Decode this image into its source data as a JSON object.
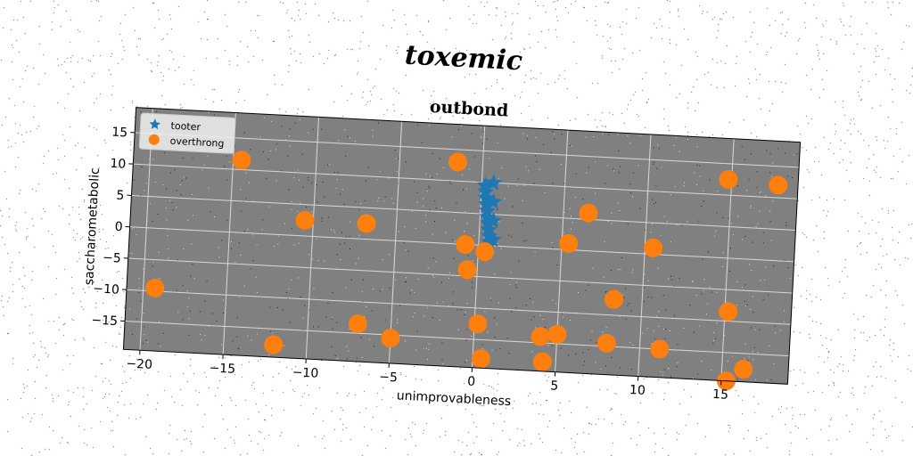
{
  "suptitle": "toxemic",
  "chart_data": {
    "type": "scatter",
    "title": "outbond",
    "xlabel": "unimprovableness",
    "ylabel": "saccharometabolic",
    "xlim": [
      -21,
      19
    ],
    "ylim": [
      -19.5,
      19
    ],
    "xticks": [
      -20,
      -15,
      -10,
      -5,
      0,
      5,
      10,
      15
    ],
    "yticks": [
      -15,
      -10,
      -5,
      0,
      5,
      10,
      15
    ],
    "grid": true,
    "legend_position": "top-left",
    "background": "#808080",
    "series": [
      {
        "name": "tooter",
        "marker": "star",
        "color": "#1f77b4",
        "x": [
          0.2,
          0.25,
          0.3,
          0.35,
          0.4,
          0.45,
          0.5,
          0.55,
          0.6,
          0.65,
          0.7,
          0.75,
          0.8,
          0.85
        ],
        "y": [
          9.5,
          8.5,
          7.5,
          6.5,
          5.5,
          4.5,
          3.5,
          2.5,
          1.5,
          0.5,
          10.0,
          7.0,
          4.0,
          1.0
        ]
      },
      {
        "name": "overthrong",
        "marker": "circle",
        "color": "#ff7f0e",
        "x": [
          -14.5,
          -19.3,
          -12.0,
          -10.5,
          -6.8,
          -7.0,
          -5.0,
          -1.5,
          -0.8,
          -0.6,
          0.2,
          0.4,
          0.5,
          4.0,
          4.2,
          5.0,
          5.4,
          6.5,
          8.0,
          8.3,
          10.5,
          11.2,
          14.8,
          15.2,
          15.3,
          16.3,
          17.8
        ],
        "y": [
          11.5,
          -9.5,
          -17.5,
          2.5,
          2.5,
          -13.5,
          -15.5,
          13.0,
          0.0,
          -4.0,
          -12.5,
          -1.0,
          -18.0,
          -14.0,
          -18.0,
          -13.5,
          1.0,
          6.0,
          -14.5,
          -7.5,
          1.0,
          -15.0,
          12.5,
          -8.5,
          -19.5,
          -17.5,
          12.0
        ]
      }
    ]
  }
}
